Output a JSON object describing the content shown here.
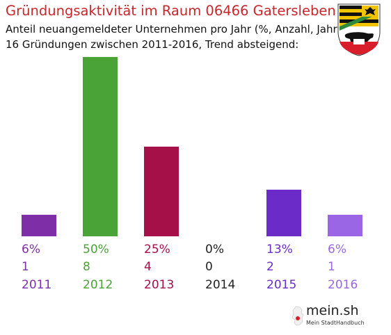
{
  "header": {
    "title": "Gründungsaktivität im Raum 06466 Gatersleben",
    "subtitle_line1": "Anteil neuangemeldeter Unternehmen pro Jahr (%, Anzahl, Jahr)",
    "subtitle_line2": "16 Gründungen zwischen 2011-2016, Trend absteigend:"
  },
  "crest": {
    "icon": "coat-of-arms-icon"
  },
  "footer": {
    "brand": "mein.sh",
    "tagline": "Mein StadtHandbuch",
    "icon": "germany-map-icon"
  },
  "chart_data": {
    "type": "bar",
    "categories": [
      "2011",
      "2012",
      "2013",
      "2014",
      "2015",
      "2016"
    ],
    "values": [
      6,
      50,
      25,
      0,
      13,
      6
    ],
    "value_labels": [
      "6%",
      "50%",
      "25%",
      "0%",
      "13%",
      "6%"
    ],
    "counts": [
      "1",
      "8",
      "4",
      "0",
      "2",
      "1"
    ],
    "colors": [
      "#7e2fa8",
      "#4aa336",
      "#a61048",
      "#222222",
      "#6a2bc9",
      "#9a66e6"
    ],
    "ylim": [
      0,
      50
    ],
    "grid": false,
    "legend": "none"
  }
}
